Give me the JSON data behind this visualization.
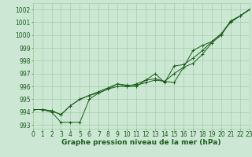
{
  "x": [
    0,
    1,
    2,
    3,
    4,
    5,
    6,
    7,
    8,
    9,
    10,
    11,
    12,
    13,
    14,
    15,
    16,
    17,
    18,
    19,
    20,
    21,
    22,
    23
  ],
  "line1": [
    994.2,
    994.2,
    994.0,
    993.2,
    993.2,
    993.2,
    995.0,
    995.5,
    995.8,
    996.2,
    996.0,
    996.2,
    996.5,
    997.0,
    996.3,
    997.6,
    997.7,
    998.2,
    998.8,
    999.5,
    1000.1,
    1001.0,
    1001.5,
    1002.0
  ],
  "line2": [
    994.2,
    994.2,
    994.1,
    993.8,
    994.5,
    995.0,
    995.3,
    995.5,
    995.8,
    996.0,
    996.0,
    996.0,
    996.5,
    996.6,
    996.4,
    996.3,
    997.5,
    997.8,
    998.5,
    999.4,
    1000.0,
    1001.1,
    1001.5,
    1002.0
  ],
  "line3": [
    994.2,
    994.2,
    994.1,
    993.8,
    994.5,
    995.0,
    995.3,
    995.6,
    995.9,
    996.2,
    996.1,
    996.1,
    996.3,
    996.5,
    996.4,
    997.0,
    997.5,
    998.8,
    999.2,
    999.5,
    1000.1,
    1001.1,
    1001.5,
    1002.0
  ],
  "xlim": [
    0,
    23
  ],
  "ylim": [
    992.7,
    1002.5
  ],
  "yticks": [
    993,
    994,
    995,
    996,
    997,
    998,
    999,
    1000,
    1001,
    1002
  ],
  "xticks": [
    0,
    1,
    2,
    3,
    4,
    5,
    6,
    7,
    8,
    9,
    10,
    11,
    12,
    13,
    14,
    15,
    16,
    17,
    18,
    19,
    20,
    21,
    22,
    23
  ],
  "line_color": "#1a5c1a",
  "bg_color": "#cce8d4",
  "grid_color": "#99cc99",
  "xlabel": "Graphe pression niveau de la mer (hPa)",
  "xlabel_fontsize": 6.5,
  "tick_fontsize": 5.5,
  "tick_color": "#1a5c1a",
  "axis_label_color": "#1a5c1a"
}
